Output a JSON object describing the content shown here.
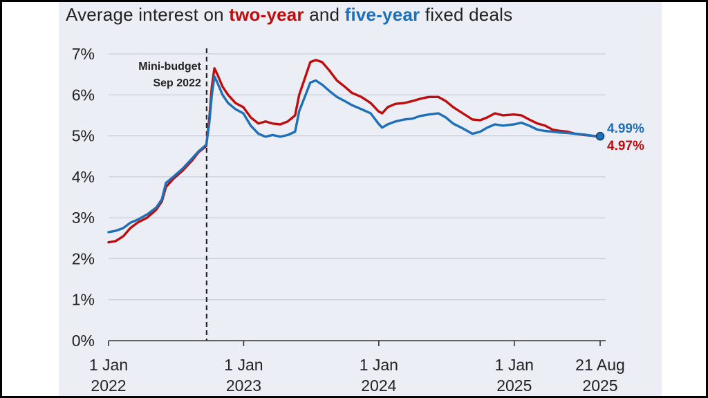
{
  "title": {
    "prefix": "Average interest on ",
    "two_year": "two-year",
    "middle": " and ",
    "five_year": "five-year",
    "suffix": " fixed deals"
  },
  "annotation": {
    "line1": "Mini-budget",
    "line2": "Sep 2022",
    "date": "2022-09-23"
  },
  "colors": {
    "two_year": "#bf0d0d",
    "five_year": "#1d6fb8",
    "panel": "#ebeef5",
    "grid": "#c9cdd6"
  },
  "chart_data": {
    "type": "line",
    "title": "Average interest on two-year and five-year fixed deals",
    "xlabel": "",
    "ylabel": "",
    "ylim": [
      0,
      7
    ],
    "xlim": [
      "2022-01-01",
      "2025-08-21"
    ],
    "grid": true,
    "y_ticks": [
      "0%",
      "1%",
      "2%",
      "3%",
      "4%",
      "5%",
      "6%",
      "7%"
    ],
    "x_ticks": [
      {
        "date": "2022-01-01",
        "line1": "1 Jan",
        "line2": "2022"
      },
      {
        "date": "2023-01-01",
        "line1": "1 Jan",
        "line2": "2023"
      },
      {
        "date": "2024-01-01",
        "line1": "1 Jan",
        "line2": "2024"
      },
      {
        "date": "2025-01-01",
        "line1": "1 Jan",
        "line2": "2025"
      },
      {
        "date": "2025-08-21",
        "line1": "21 Aug",
        "line2": "2025"
      }
    ],
    "series": [
      {
        "name": "two-year",
        "end_label": "4.97%",
        "points": [
          [
            "2022-01-01",
            2.4
          ],
          [
            "2022-01-20",
            2.43
          ],
          [
            "2022-02-10",
            2.55
          ],
          [
            "2022-03-01",
            2.75
          ],
          [
            "2022-03-20",
            2.88
          ],
          [
            "2022-04-15",
            3.0
          ],
          [
            "2022-05-10",
            3.2
          ],
          [
            "2022-05-25",
            3.4
          ],
          [
            "2022-06-05",
            3.75
          ],
          [
            "2022-06-25",
            3.95
          ],
          [
            "2022-07-20",
            4.15
          ],
          [
            "2022-08-15",
            4.4
          ],
          [
            "2022-09-01",
            4.6
          ],
          [
            "2022-09-22",
            4.75
          ],
          [
            "2022-09-30",
            5.4
          ],
          [
            "2022-10-07",
            6.2
          ],
          [
            "2022-10-14",
            6.65
          ],
          [
            "2022-10-22",
            6.5
          ],
          [
            "2022-11-05",
            6.2
          ],
          [
            "2022-11-20",
            6.0
          ],
          [
            "2022-12-10",
            5.8
          ],
          [
            "2022-12-31",
            5.7
          ],
          [
            "2023-01-20",
            5.45
          ],
          [
            "2023-02-10",
            5.3
          ],
          [
            "2023-03-01",
            5.35
          ],
          [
            "2023-03-20",
            5.3
          ],
          [
            "2023-04-10",
            5.28
          ],
          [
            "2023-04-30",
            5.35
          ],
          [
            "2023-05-20",
            5.5
          ],
          [
            "2023-05-31",
            6.0
          ],
          [
            "2023-06-15",
            6.4
          ],
          [
            "2023-06-30",
            6.8
          ],
          [
            "2023-07-15",
            6.85
          ],
          [
            "2023-08-01",
            6.8
          ],
          [
            "2023-08-20",
            6.6
          ],
          [
            "2023-09-10",
            6.35
          ],
          [
            "2023-10-01",
            6.2
          ],
          [
            "2023-10-20",
            6.05
          ],
          [
            "2023-11-15",
            5.95
          ],
          [
            "2023-12-10",
            5.8
          ],
          [
            "2023-12-31",
            5.6
          ],
          [
            "2024-01-10",
            5.55
          ],
          [
            "2024-01-25",
            5.7
          ],
          [
            "2024-02-15",
            5.78
          ],
          [
            "2024-03-10",
            5.8
          ],
          [
            "2024-04-01",
            5.85
          ],
          [
            "2024-04-20",
            5.9
          ],
          [
            "2024-05-15",
            5.95
          ],
          [
            "2024-06-10",
            5.95
          ],
          [
            "2024-06-30",
            5.85
          ],
          [
            "2024-07-20",
            5.7
          ],
          [
            "2024-08-15",
            5.55
          ],
          [
            "2024-09-10",
            5.4
          ],
          [
            "2024-10-01",
            5.38
          ],
          [
            "2024-10-20",
            5.45
          ],
          [
            "2024-11-10",
            5.55
          ],
          [
            "2024-12-01",
            5.5
          ],
          [
            "2024-12-31",
            5.52
          ],
          [
            "2025-01-20",
            5.5
          ],
          [
            "2025-02-10",
            5.4
          ],
          [
            "2025-03-05",
            5.3
          ],
          [
            "2025-03-25",
            5.25
          ],
          [
            "2025-04-15",
            5.15
          ],
          [
            "2025-05-05",
            5.12
          ],
          [
            "2025-05-25",
            5.1
          ],
          [
            "2025-06-15",
            5.05
          ],
          [
            "2025-07-10",
            5.02
          ],
          [
            "2025-08-01",
            5.0
          ],
          [
            "2025-08-21",
            4.97
          ]
        ]
      },
      {
        "name": "five-year",
        "end_label": "4.99%",
        "points": [
          [
            "2022-01-01",
            2.65
          ],
          [
            "2022-01-20",
            2.68
          ],
          [
            "2022-02-10",
            2.75
          ],
          [
            "2022-03-01",
            2.88
          ],
          [
            "2022-03-20",
            2.95
          ],
          [
            "2022-04-15",
            3.08
          ],
          [
            "2022-05-10",
            3.25
          ],
          [
            "2022-05-25",
            3.45
          ],
          [
            "2022-06-05",
            3.85
          ],
          [
            "2022-06-25",
            4.0
          ],
          [
            "2022-07-20",
            4.2
          ],
          [
            "2022-08-15",
            4.45
          ],
          [
            "2022-09-01",
            4.62
          ],
          [
            "2022-09-22",
            4.78
          ],
          [
            "2022-09-30",
            5.3
          ],
          [
            "2022-10-07",
            6.0
          ],
          [
            "2022-10-14",
            6.45
          ],
          [
            "2022-10-22",
            6.3
          ],
          [
            "2022-11-05",
            6.0
          ],
          [
            "2022-11-20",
            5.8
          ],
          [
            "2022-12-10",
            5.65
          ],
          [
            "2022-12-31",
            5.55
          ],
          [
            "2023-01-20",
            5.25
          ],
          [
            "2023-02-10",
            5.05
          ],
          [
            "2023-03-01",
            4.98
          ],
          [
            "2023-03-20",
            5.02
          ],
          [
            "2023-04-10",
            4.98
          ],
          [
            "2023-04-30",
            5.02
          ],
          [
            "2023-05-20",
            5.1
          ],
          [
            "2023-05-31",
            5.6
          ],
          [
            "2023-06-15",
            5.95
          ],
          [
            "2023-06-30",
            6.3
          ],
          [
            "2023-07-15",
            6.35
          ],
          [
            "2023-08-01",
            6.25
          ],
          [
            "2023-08-20",
            6.1
          ],
          [
            "2023-09-10",
            5.95
          ],
          [
            "2023-10-01",
            5.85
          ],
          [
            "2023-10-20",
            5.75
          ],
          [
            "2023-11-15",
            5.65
          ],
          [
            "2023-12-10",
            5.55
          ],
          [
            "2023-12-31",
            5.3
          ],
          [
            "2024-01-10",
            5.2
          ],
          [
            "2024-01-25",
            5.28
          ],
          [
            "2024-02-15",
            5.35
          ],
          [
            "2024-03-10",
            5.4
          ],
          [
            "2024-04-01",
            5.42
          ],
          [
            "2024-04-20",
            5.48
          ],
          [
            "2024-05-15",
            5.52
          ],
          [
            "2024-06-10",
            5.55
          ],
          [
            "2024-06-30",
            5.45
          ],
          [
            "2024-07-20",
            5.3
          ],
          [
            "2024-08-15",
            5.18
          ],
          [
            "2024-09-10",
            5.05
          ],
          [
            "2024-10-01",
            5.1
          ],
          [
            "2024-10-20",
            5.2
          ],
          [
            "2024-11-10",
            5.28
          ],
          [
            "2024-12-01",
            5.25
          ],
          [
            "2024-12-31",
            5.28
          ],
          [
            "2025-01-20",
            5.32
          ],
          [
            "2025-02-10",
            5.25
          ],
          [
            "2025-03-05",
            5.15
          ],
          [
            "2025-03-25",
            5.12
          ],
          [
            "2025-04-15",
            5.1
          ],
          [
            "2025-05-05",
            5.08
          ],
          [
            "2025-05-25",
            5.07
          ],
          [
            "2025-06-15",
            5.05
          ],
          [
            "2025-07-10",
            5.03
          ],
          [
            "2025-08-01",
            5.0
          ],
          [
            "2025-08-21",
            4.99
          ]
        ]
      }
    ]
  }
}
